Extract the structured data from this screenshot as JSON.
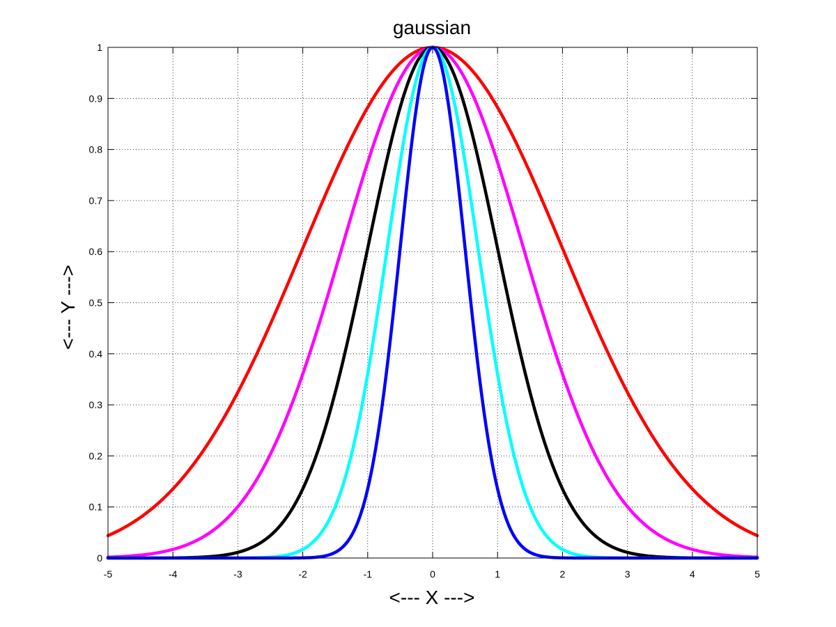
{
  "chart_data": {
    "type": "line",
    "title": "gaussian",
    "xlabel": "<--- X --->",
    "ylabel": "<--- Y --->",
    "xlim": [
      -5,
      5
    ],
    "ylim": [
      0,
      1
    ],
    "xticks": [
      -5,
      -4,
      -3,
      -2,
      -1,
      0,
      1,
      2,
      3,
      4,
      5
    ],
    "yticks": [
      0,
      0.1,
      0.2,
      0.3,
      0.4,
      0.5,
      0.6,
      0.7,
      0.8,
      0.9,
      1
    ],
    "xtick_labels": [
      "-5",
      "-4",
      "-3",
      "-2",
      "-1",
      "0",
      "1",
      "2",
      "3",
      "4",
      "5"
    ],
    "ytick_labels": [
      "0",
      "0.1",
      "0.2",
      "0.3",
      "0.4",
      "0.5",
      "0.6",
      "0.7",
      "0.8",
      "0.9",
      "1"
    ],
    "grid": true,
    "legend": null,
    "series": [
      {
        "color": "#ff0000",
        "function": "exp(-x^2/(2*sigma^2))",
        "sigma": 2.0
      },
      {
        "color": "#ff00ff",
        "function": "exp(-x^2/(2*sigma^2))",
        "sigma": 1.4
      },
      {
        "color": "#000000",
        "function": "exp(-x^2/(2*sigma^2))",
        "sigma": 1.0
      },
      {
        "color": "#00ffff",
        "function": "exp(-x^2/(2*sigma^2))",
        "sigma": 0.7
      },
      {
        "color": "#0000ff",
        "function": "exp(-x^2/(2*sigma^2))",
        "sigma": 0.5
      }
    ],
    "sample_x": [
      -5,
      -4.5,
      -4,
      -3.5,
      -3,
      -2.5,
      -2,
      -1.5,
      -1,
      -0.5,
      0,
      0.5,
      1,
      1.5,
      2,
      2.5,
      3,
      3.5,
      4,
      4.5,
      5
    ],
    "sample_y": {
      "red": [
        0.044,
        0.08,
        0.135,
        0.216,
        0.325,
        0.458,
        0.607,
        0.755,
        0.882,
        0.969,
        1.0,
        0.969,
        0.882,
        0.755,
        0.607,
        0.458,
        0.325,
        0.216,
        0.135,
        0.08,
        0.044
      ],
      "magenta": [
        0.002,
        0.006,
        0.017,
        0.044,
        0.101,
        0.203,
        0.361,
        0.563,
        0.775,
        0.938,
        1.0,
        0.938,
        0.775,
        0.563,
        0.361,
        0.203,
        0.101,
        0.044,
        0.017,
        0.006,
        0.002
      ],
      "black": [
        0.0,
        0.0,
        0.0,
        0.002,
        0.011,
        0.044,
        0.135,
        0.325,
        0.607,
        0.882,
        1.0,
        0.882,
        0.607,
        0.325,
        0.135,
        0.044,
        0.011,
        0.002,
        0.0,
        0.0,
        0.0
      ],
      "cyan": [
        0.0,
        0.0,
        0.0,
        0.0,
        0.0,
        0.002,
        0.017,
        0.101,
        0.361,
        0.775,
        1.0,
        0.775,
        0.361,
        0.101,
        0.017,
        0.002,
        0.0,
        0.0,
        0.0,
        0.0,
        0.0
      ],
      "blue": [
        0.0,
        0.0,
        0.0,
        0.0,
        0.0,
        0.0,
        0.0,
        0.011,
        0.135,
        0.607,
        1.0,
        0.607,
        0.135,
        0.011,
        0.0,
        0.0,
        0.0,
        0.0,
        0.0,
        0.0,
        0.0
      ]
    }
  }
}
